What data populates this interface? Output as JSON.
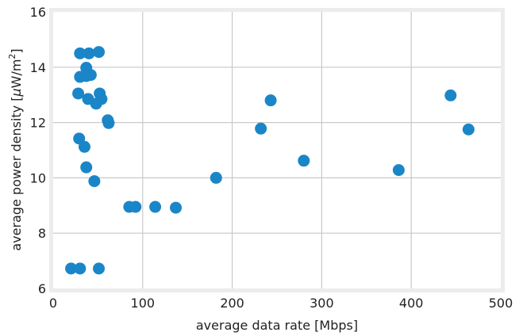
{
  "chart_data": {
    "type": "scatter",
    "title": "",
    "xlabel": "average data rate [Mbps]",
    "ylabel_parts": {
      "prefix": "average power density [",
      "mu": "μ",
      "unit": "W/m",
      "exp": "2",
      "suffix": "]"
    },
    "xlim": [
      0,
      500
    ],
    "ylim": [
      6,
      16
    ],
    "x_ticks": [
      0,
      100,
      200,
      300,
      400,
      500
    ],
    "y_ticks": [
      6,
      8,
      10,
      12,
      14,
      16
    ],
    "x_tick_labels": [
      "0",
      "100",
      "200",
      "300",
      "400",
      "500"
    ],
    "y_tick_labels": [
      "6",
      "8",
      "10",
      "12",
      "14",
      "16"
    ],
    "grid": true,
    "marker_color": "#1a86c8",
    "grid_color": "#c9c9c9",
    "frame_color": "#ececec",
    "series": [
      {
        "points": [
          {
            "x": 20,
            "y": 6.72
          },
          {
            "x": 30,
            "y": 6.72
          },
          {
            "x": 51,
            "y": 6.72
          },
          {
            "x": 30,
            "y": 14.5
          },
          {
            "x": 40,
            "y": 14.5
          },
          {
            "x": 51,
            "y": 14.55
          },
          {
            "x": 37,
            "y": 13.98
          },
          {
            "x": 30,
            "y": 13.65
          },
          {
            "x": 37,
            "y": 13.68
          },
          {
            "x": 42,
            "y": 13.72
          },
          {
            "x": 28,
            "y": 13.05
          },
          {
            "x": 39,
            "y": 12.85
          },
          {
            "x": 48,
            "y": 12.68
          },
          {
            "x": 52,
            "y": 13.05
          },
          {
            "x": 54,
            "y": 12.85
          },
          {
            "x": 61,
            "y": 12.08
          },
          {
            "x": 62,
            "y": 11.98
          },
          {
            "x": 29,
            "y": 11.42
          },
          {
            "x": 35,
            "y": 11.12
          },
          {
            "x": 37,
            "y": 10.38
          },
          {
            "x": 46,
            "y": 9.88
          },
          {
            "x": 85,
            "y": 8.95
          },
          {
            "x": 92,
            "y": 8.95
          },
          {
            "x": 114,
            "y": 8.95
          },
          {
            "x": 137,
            "y": 8.92
          },
          {
            "x": 182,
            "y": 10.0
          },
          {
            "x": 232,
            "y": 11.78
          },
          {
            "x": 243,
            "y": 12.8
          },
          {
            "x": 280,
            "y": 10.62
          },
          {
            "x": 386,
            "y": 10.28
          },
          {
            "x": 444,
            "y": 12.98
          },
          {
            "x": 464,
            "y": 11.75
          }
        ]
      }
    ]
  }
}
